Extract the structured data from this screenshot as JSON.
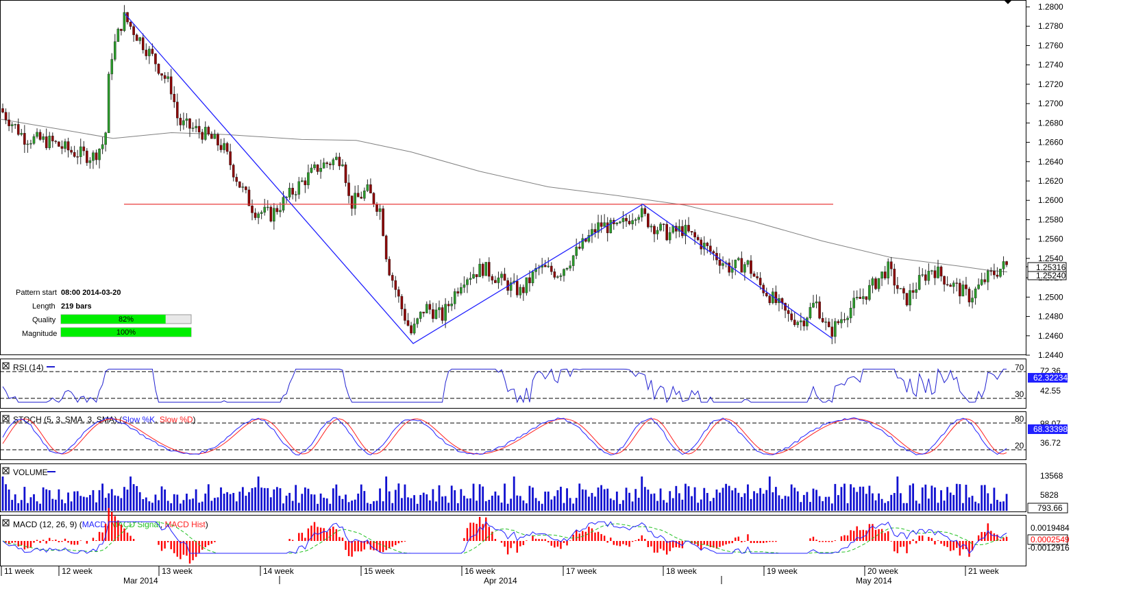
{
  "colors": {
    "bull_body": "#2a9a2a",
    "bear_body": "#8b0000",
    "wick": "#222222",
    "ma": "#808080",
    "pattern": "#2020ff",
    "neckline": "#e83a3a",
    "rsi": "#2020d0",
    "stoch_k": "#2020ff",
    "stoch_d": "#ff2020",
    "volume": "#1010d0",
    "macd": "#2020ff",
    "macd_signal": "#20c020",
    "macd_hist": "#ff0000",
    "quality_fill": "#00ee00",
    "tag_blue": "#2020ff"
  },
  "info_panel": {
    "pattern_start_label": "Pattern start",
    "pattern_start_value": "08:00 2014-03-20",
    "length_label": "Length",
    "length_value": "219 bars",
    "quality_label": "Quality",
    "quality_value": "82%",
    "quality_fraction": 0.82,
    "magnitude_label": "Magnitude",
    "magnitude_value": "100%",
    "magnitude_fraction": 1.0
  },
  "price_tags": {
    "current": "1.25316",
    "second": "1.25240"
  },
  "panes": {
    "rsi": {
      "label": "RSI (14)",
      "level_high": "70",
      "level_low": "30",
      "scale_top": "72.36",
      "scale_mid": "42.55",
      "current": "62.32234"
    },
    "stoch": {
      "label_prefix": "STOCH (5, 3, SMA, 3, SMA)",
      "k_label": "Slow %K",
      "d_label": "Slow %D",
      "level_high": "80",
      "level_low": "20",
      "scale_top": "98.07",
      "scale_mid": "36.72",
      "current": "68.33398"
    },
    "volume": {
      "label": "VOLUME",
      "scale_top": "13568",
      "scale_mid": "5828",
      "current": "793.66"
    },
    "macd": {
      "label_prefix": "MACD (12, 26, 9)",
      "macd_label": "MACD",
      "signal_label": "MACD Signal",
      "hist_label": "MACD Hist",
      "scale_top": "0.0019484",
      "scale_bottom": "-0.0012916",
      "current": "0.0002549"
    }
  },
  "x_axis": {
    "weeks": [
      "11 week",
      "12 week",
      "13 week",
      "14 week",
      "15 week",
      "16 week",
      "17 week",
      "18 week",
      "19 week",
      "20 week",
      "21 week"
    ],
    "months": [
      "Mar 2014",
      "Apr 2014",
      "May 2014"
    ]
  },
  "chart_data": {
    "type": "candlestick",
    "symbol_unit": "price",
    "y_ticks": [
      "1.2800",
      "1.2780",
      "1.2760",
      "1.2740",
      "1.2720",
      "1.2700",
      "1.2680",
      "1.2660",
      "1.2640",
      "1.2620",
      "1.2600",
      "1.2580",
      "1.2560",
      "1.2540",
      "1.2520",
      "1.2500",
      "1.2480",
      "1.2460",
      "1.2440"
    ],
    "ylim": [
      1.244,
      1.2805
    ],
    "neckline_price": 1.2596,
    "pattern_points": [
      {
        "price": 1.2793
      },
      {
        "price": 1.2452
      },
      {
        "price": 1.2596
      },
      {
        "price": 1.2457
      }
    ]
  }
}
